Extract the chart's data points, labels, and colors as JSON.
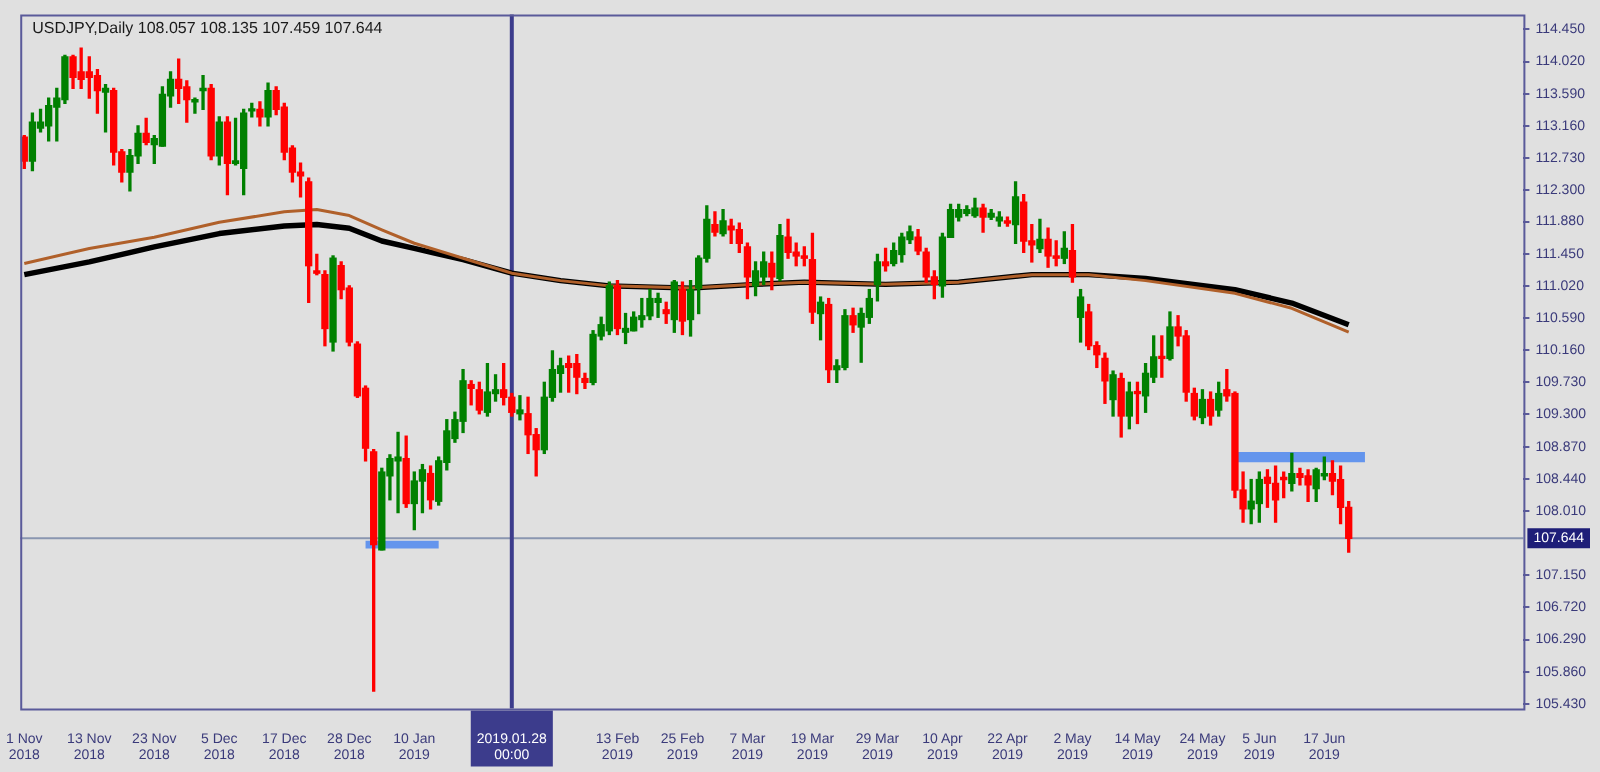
{
  "chart_data": {
    "type": "candlestick",
    "title": "USDJPY,Daily 108.057 108.135 107.459 107.644",
    "categories": [
      "1 Nov 2018",
      null,
      null,
      null,
      null,
      null,
      null,
      null,
      "13 Nov 2018",
      null,
      null,
      null,
      null,
      null,
      null,
      null,
      "23 Nov 2018",
      null,
      null,
      null,
      null,
      null,
      null,
      null,
      "5 Dec 2018",
      null,
      null,
      null,
      null,
      null,
      null,
      null,
      "17 Dec 2018",
      null,
      null,
      null,
      null,
      null,
      null,
      null,
      "28 Dec 2018",
      null,
      null,
      null,
      null,
      null,
      null,
      null,
      "10 Jan 2019",
      null,
      null,
      null,
      null,
      null,
      null,
      null,
      null,
      null,
      null,
      null,
      "2019.01.28 00:00",
      null,
      null,
      null,
      null,
      null,
      null,
      null,
      null,
      null,
      null,
      null,
      null,
      "13 Feb 2019",
      null,
      null,
      null,
      null,
      null,
      null,
      null,
      "25 Feb 2019",
      null,
      null,
      null,
      null,
      null,
      null,
      null,
      "7 Mar 2019",
      null,
      null,
      null,
      null,
      null,
      null,
      null,
      "19 Mar 2019",
      null,
      null,
      null,
      null,
      null,
      null,
      null,
      "29 Mar 2019",
      null,
      null,
      null,
      null,
      null,
      null,
      null,
      "10 Apr 2019",
      null,
      null,
      null,
      null,
      null,
      null,
      null,
      "22 Apr 2019",
      null,
      null,
      null,
      null,
      null,
      null,
      null,
      "2 May 2019",
      null,
      null,
      null,
      null,
      null,
      null,
      null,
      "14 May 2019",
      null,
      null,
      null,
      null,
      null,
      null,
      null,
      "24 May 2019",
      null,
      null,
      null,
      null,
      null,
      null,
      "5 Jun 2019",
      null,
      null,
      null,
      null,
      null,
      null,
      null,
      "17 Jun 2019",
      null,
      null,
      null,
      null,
      null,
      null,
      null,
      null,
      null,
      null,
      null,
      null,
      null,
      null,
      null,
      null,
      null,
      null,
      null,
      null,
      null,
      null,
      null,
      null
    ],
    "ohlc": [
      [
        113.01,
        113.03,
        112.59,
        112.69
      ],
      [
        112.69,
        113.33,
        112.56,
        113.21
      ],
      [
        113.13,
        113.38,
        113.08,
        113.21
      ],
      [
        113.16,
        113.53,
        112.96,
        113.43
      ],
      [
        113.41,
        113.66,
        112.96,
        113.53
      ],
      [
        113.51,
        114.1,
        113.46,
        114.08
      ],
      [
        114.08,
        114.1,
        113.66,
        113.81
      ],
      [
        113.88,
        114.2,
        113.66,
        113.78
      ],
      [
        113.88,
        114.08,
        113.53,
        113.81
      ],
      [
        113.83,
        113.91,
        113.33,
        113.63
      ],
      [
        113.61,
        113.71,
        113.08,
        113.66
      ],
      [
        113.63,
        113.66,
        112.64,
        112.81
      ],
      [
        112.81,
        112.84,
        112.41,
        112.54
      ],
      [
        112.54,
        112.84,
        112.29,
        112.76
      ],
      [
        112.76,
        113.16,
        112.66,
        113.06
      ],
      [
        113.06,
        113.26,
        112.91,
        112.94
      ],
      [
        112.91,
        113.03,
        112.66,
        112.99
      ],
      [
        112.89,
        113.68,
        112.89,
        113.58
      ],
      [
        113.56,
        113.88,
        113.41,
        113.78
      ],
      [
        113.78,
        114.05,
        113.46,
        113.66
      ],
      [
        113.68,
        113.76,
        113.21,
        113.51
      ],
      [
        113.48,
        113.53,
        113.33,
        113.51
      ],
      [
        113.63,
        113.83,
        113.38,
        113.66
      ],
      [
        113.66,
        113.71,
        112.71,
        112.76
      ],
      [
        112.76,
        113.28,
        112.64,
        113.21
      ],
      [
        113.21,
        113.28,
        112.24,
        112.66
      ],
      [
        112.66,
        113.26,
        112.64,
        112.69
      ],
      [
        112.59,
        113.38,
        112.24,
        113.33
      ],
      [
        113.36,
        113.46,
        113.28,
        113.38
      ],
      [
        113.38,
        113.48,
        113.16,
        113.28
      ],
      [
        113.28,
        113.73,
        113.16,
        113.63
      ],
      [
        113.63,
        113.68,
        113.31,
        113.38
      ],
      [
        113.41,
        113.46,
        112.71,
        112.81
      ],
      [
        112.86,
        112.89,
        112.41,
        112.54
      ],
      [
        112.54,
        112.66,
        112.21,
        112.49
      ],
      [
        112.41,
        112.46,
        110.8,
        111.29
      ],
      [
        111.22,
        111.44,
        111.17,
        111.19
      ],
      [
        111.17,
        111.22,
        110.22,
        110.45
      ],
      [
        110.27,
        111.42,
        110.15,
        111.39
      ],
      [
        111.29,
        111.34,
        110.85,
        110.97
      ],
      [
        110.99,
        111.02,
        110.22,
        110.27
      ],
      [
        110.24,
        110.27,
        109.53,
        109.55
      ],
      [
        109.65,
        109.68,
        108.68,
        108.85
      ],
      [
        108.8,
        108.83,
        105.6,
        107.56
      ],
      [
        107.49,
        108.58,
        107.49,
        108.53
      ],
      [
        108.48,
        108.76,
        108.16,
        108.71
      ],
      [
        108.68,
        109.06,
        107.99,
        108.73
      ],
      [
        108.71,
        109.01,
        108.06,
        108.11
      ],
      [
        108.11,
        108.53,
        107.76,
        108.41
      ],
      [
        108.41,
        108.63,
        107.99,
        108.56
      ],
      [
        108.51,
        108.61,
        108.04,
        108.16
      ],
      [
        108.14,
        108.73,
        108.09,
        108.68
      ],
      [
        108.66,
        109.23,
        108.56,
        109.08
      ],
      [
        108.98,
        109.33,
        108.93,
        109.23
      ],
      [
        109.21,
        109.9,
        109.06,
        109.75
      ],
      [
        109.7,
        109.75,
        109.43,
        109.65
      ],
      [
        109.63,
        109.73,
        109.31,
        109.36
      ],
      [
        109.33,
        109.98,
        109.28,
        109.6
      ],
      [
        109.58,
        109.83,
        109.48,
        109.63
      ],
      [
        109.63,
        109.98,
        109.43,
        109.53
      ],
      [
        109.53,
        109.58,
        109.28,
        109.33
      ],
      [
        109.31,
        109.55,
        109.23,
        109.36
      ],
      [
        109.31,
        109.53,
        108.78,
        109.03
      ],
      [
        109.03,
        109.11,
        108.48,
        108.83
      ],
      [
        108.83,
        109.73,
        108.78,
        109.53
      ],
      [
        109.53,
        110.15,
        109.48,
        109.9
      ],
      [
        109.85,
        110.05,
        109.6,
        109.95
      ],
      [
        109.98,
        110.08,
        109.6,
        109.93
      ],
      [
        109.98,
        110.1,
        109.58,
        109.8
      ],
      [
        109.78,
        109.85,
        109.65,
        109.73
      ],
      [
        109.73,
        110.42,
        109.7,
        110.37
      ],
      [
        110.35,
        110.6,
        110.3,
        110.5
      ],
      [
        110.42,
        111.07,
        110.37,
        111.02
      ],
      [
        111.02,
        111.09,
        110.37,
        110.45
      ],
      [
        110.4,
        110.65,
        110.25,
        110.45
      ],
      [
        110.42,
        110.67,
        110.42,
        110.6
      ],
      [
        110.57,
        110.85,
        110.47,
        110.62
      ],
      [
        110.62,
        110.97,
        110.57,
        110.85
      ],
      [
        110.8,
        110.92,
        110.6,
        110.85
      ],
      [
        110.7,
        110.8,
        110.52,
        110.65
      ],
      [
        110.57,
        111.09,
        110.4,
        111.07
      ],
      [
        110.97,
        111.07,
        110.37,
        110.55
      ],
      [
        110.57,
        111.09,
        110.35,
        110.97
      ],
      [
        110.99,
        111.42,
        110.65,
        111.39
      ],
      [
        111.39,
        112.09,
        111.34,
        111.91
      ],
      [
        111.84,
        112.01,
        111.69,
        111.74
      ],
      [
        111.72,
        112.04,
        111.69,
        111.89
      ],
      [
        111.82,
        111.91,
        111.59,
        111.77
      ],
      [
        111.77,
        111.86,
        111.47,
        111.59
      ],
      [
        111.54,
        111.59,
        110.85,
        111.14
      ],
      [
        111.02,
        111.34,
        110.89,
        111.22
      ],
      [
        111.14,
        111.47,
        111.04,
        111.34
      ],
      [
        111.32,
        111.47,
        110.97,
        111.14
      ],
      [
        111.12,
        111.84,
        111.09,
        111.69
      ],
      [
        111.67,
        111.91,
        111.39,
        111.47
      ],
      [
        111.47,
        111.59,
        111.29,
        111.42
      ],
      [
        111.42,
        111.54,
        111.29,
        111.39
      ],
      [
        111.37,
        111.72,
        110.52,
        110.67
      ],
      [
        110.65,
        110.87,
        110.3,
        110.8
      ],
      [
        110.77,
        110.85,
        109.73,
        109.9
      ],
      [
        109.9,
        110.03,
        109.73,
        109.95
      ],
      [
        109.93,
        110.7,
        109.9,
        110.62
      ],
      [
        110.62,
        110.72,
        110.4,
        110.5
      ],
      [
        110.47,
        110.72,
        110.0,
        110.65
      ],
      [
        110.6,
        110.97,
        110.52,
        110.85
      ],
      [
        111.04,
        111.44,
        110.82,
        111.34
      ],
      [
        111.34,
        111.52,
        111.22,
        111.29
      ],
      [
        111.32,
        111.59,
        111.29,
        111.49
      ],
      [
        111.44,
        111.72,
        111.34,
        111.67
      ],
      [
        111.64,
        111.82,
        111.59,
        111.74
      ],
      [
        111.67,
        111.77,
        111.44,
        111.49
      ],
      [
        111.47,
        111.52,
        111.07,
        111.14
      ],
      [
        111.14,
        111.22,
        110.85,
        111.04
      ],
      [
        111.02,
        111.72,
        110.87,
        111.67
      ],
      [
        111.67,
        112.11,
        111.67,
        112.04
      ],
      [
        111.94,
        112.11,
        111.89,
        112.04
      ],
      [
        111.99,
        112.09,
        111.96,
        112.04
      ],
      [
        111.96,
        112.19,
        111.94,
        112.06
      ],
      [
        112.06,
        112.11,
        111.74,
        111.94
      ],
      [
        111.94,
        112.04,
        111.91,
        111.99
      ],
      [
        111.89,
        112.01,
        111.82,
        111.94
      ],
      [
        111.89,
        111.94,
        111.82,
        111.86
      ],
      [
        111.84,
        112.41,
        111.59,
        112.21
      ],
      [
        112.14,
        112.24,
        111.47,
        111.62
      ],
      [
        111.62,
        111.84,
        111.34,
        111.57
      ],
      [
        111.52,
        111.91,
        111.47,
        111.64
      ],
      [
        111.64,
        111.79,
        111.27,
        111.42
      ],
      [
        111.42,
        111.62,
        111.29,
        111.39
      ],
      [
        111.39,
        111.74,
        111.32,
        111.52
      ],
      [
        111.49,
        111.84,
        111.07,
        111.14
      ],
      [
        110.6,
        110.97,
        110.27,
        110.87
      ],
      [
        110.67,
        110.77,
        110.17,
        110.22
      ],
      [
        110.22,
        110.27,
        109.93,
        110.1
      ],
      [
        110.05,
        110.12,
        109.45,
        109.75
      ],
      [
        109.5,
        109.88,
        109.28,
        109.83
      ],
      [
        109.78,
        109.85,
        109.0,
        109.28
      ],
      [
        109.28,
        109.73,
        109.11,
        109.6
      ],
      [
        109.6,
        109.73,
        109.18,
        109.58
      ],
      [
        109.55,
        109.98,
        109.33,
        109.85
      ],
      [
        109.8,
        110.35,
        109.73,
        110.07
      ],
      [
        110.07,
        110.35,
        109.8,
        110.05
      ],
      [
        110.05,
        110.67,
        110.03,
        110.47
      ],
      [
        110.47,
        110.62,
        110.22,
        110.35
      ],
      [
        110.35,
        110.42,
        109.48,
        109.6
      ],
      [
        109.58,
        109.65,
        109.23,
        109.28
      ],
      [
        109.26,
        109.63,
        109.18,
        109.5
      ],
      [
        109.5,
        109.6,
        109.16,
        109.28
      ],
      [
        109.36,
        109.73,
        109.28,
        109.58
      ],
      [
        109.63,
        109.9,
        109.48,
        109.55
      ],
      [
        109.58,
        109.6,
        108.19,
        108.29
      ],
      [
        108.29,
        108.53,
        107.86,
        108.04
      ],
      [
        108.04,
        108.43,
        107.84,
        108.14
      ],
      [
        108.11,
        108.53,
        107.86,
        108.43
      ],
      [
        108.46,
        108.56,
        108.06,
        108.38
      ],
      [
        108.38,
        108.61,
        107.86,
        108.16
      ],
      [
        108.46,
        108.53,
        108.19,
        108.43
      ],
      [
        108.38,
        108.78,
        108.28,
        108.51
      ],
      [
        108.51,
        108.58,
        108.36,
        108.46
      ],
      [
        108.48,
        108.56,
        108.14,
        108.36
      ],
      [
        108.31,
        108.58,
        108.14,
        108.56
      ],
      [
        108.48,
        108.73,
        108.43,
        108.51
      ],
      [
        108.51,
        108.68,
        108.23,
        108.41
      ],
      [
        108.43,
        108.61,
        107.84,
        108.06
      ],
      [
        108.057,
        108.135,
        107.459,
        107.644
      ],
      null,
      null,
      null,
      null,
      null,
      null,
      null,
      null,
      null,
      null,
      null,
      null,
      null,
      null,
      null,
      null,
      null,
      null,
      null,
      null,
      null
    ],
    "series": [
      {
        "type": "line",
        "color": "#b0602a",
        "values": [
          111.32,
          null,
          null,
          null,
          null,
          null,
          null,
          null,
          111.52,
          null,
          null,
          null,
          null,
          null,
          null,
          null,
          111.67,
          null,
          null,
          null,
          null,
          null,
          null,
          null,
          111.87,
          null,
          null,
          null,
          null,
          null,
          null,
          null,
          112.01,
          null,
          null,
          null,
          112.04,
          null,
          null,
          null,
          111.96,
          null,
          null,
          null,
          111.77,
          null,
          null,
          null,
          111.59,
          null,
          null,
          null,
          null,
          null,
          111.39,
          null,
          null,
          null,
          null,
          null,
          111.19,
          null,
          null,
          null,
          null,
          null,
          111.09,
          null,
          null,
          null,
          null,
          null,
          111.02,
          null,
          null,
          null,
          null,
          null,
          null,
          null,
          null,
          null,
          110.99,
          null,
          null,
          null,
          null,
          null,
          null,
          null,
          111.04,
          null,
          null,
          null,
          null,
          null,
          111.07,
          null,
          null,
          null,
          null,
          null,
          null,
          null,
          null,
          null,
          111.04,
          null,
          null,
          null,
          null,
          null,
          null,
          null,
          null,
          111.07,
          null,
          null,
          null,
          null,
          null,
          null,
          null,
          null,
          111.17,
          null,
          null,
          null,
          null,
          null,
          null,
          111.17,
          null,
          null,
          null,
          null,
          null,
          null,
          111.09,
          null,
          null,
          null,
          null,
          null,
          null,
          null,
          null,
          null,
          null,
          110.92,
          null,
          null,
          null,
          null,
          null,
          null,
          110.72,
          null,
          null,
          null,
          null,
          null,
          null,
          110.4,
          null,
          null,
          null,
          null,
          null,
          null,
          null,
          null,
          null,
          null,
          null,
          null,
          null,
          null,
          null,
          null,
          null,
          null,
          null,
          null,
          null
        ]
      },
      {
        "type": "line",
        "color": "#000000",
        "values": [
          111.17,
          null,
          null,
          null,
          null,
          null,
          null,
          null,
          111.34,
          null,
          null,
          null,
          null,
          null,
          null,
          null,
          111.54,
          null,
          null,
          null,
          null,
          null,
          null,
          null,
          111.72,
          null,
          null,
          null,
          null,
          null,
          null,
          null,
          111.82,
          null,
          null,
          null,
          111.84,
          null,
          null,
          null,
          111.79,
          null,
          null,
          null,
          111.62,
          null,
          null,
          null,
          111.52,
          null,
          null,
          null,
          null,
          null,
          111.37,
          null,
          null,
          null,
          null,
          null,
          111.19,
          null,
          null,
          null,
          null,
          null,
          111.09,
          null,
          null,
          null,
          null,
          null,
          111.02,
          null,
          null,
          null,
          null,
          null,
          null,
          null,
          null,
          null,
          110.99,
          null,
          null,
          null,
          null,
          null,
          null,
          null,
          111.04,
          null,
          null,
          null,
          null,
          null,
          111.07,
          null,
          null,
          null,
          null,
          null,
          null,
          null,
          null,
          null,
          111.04,
          null,
          null,
          null,
          null,
          null,
          null,
          null,
          null,
          111.07,
          null,
          null,
          null,
          null,
          null,
          null,
          null,
          null,
          111.17,
          null,
          null,
          null,
          null,
          null,
          null,
          111.17,
          null,
          null,
          null,
          null,
          null,
          null,
          111.12,
          null,
          null,
          null,
          null,
          null,
          null,
          null,
          null,
          null,
          null,
          110.97,
          null,
          null,
          null,
          null,
          null,
          null,
          110.79,
          null,
          null,
          null,
          null,
          null,
          null,
          110.5,
          null,
          null,
          null,
          null,
          null,
          null,
          null,
          null,
          null,
          null,
          null,
          null,
          null,
          null,
          null,
          null,
          null,
          null,
          null,
          null,
          null
        ]
      },
      {
        "type": "line",
        "color": "#6495ed",
        "values": [
          null,
          null,
          null,
          null,
          null,
          null,
          null,
          null,
          null,
          null,
          null,
          null,
          null,
          null,
          null,
          null,
          null,
          null,
          null,
          null,
          null,
          null,
          null,
          null,
          null,
          null,
          null,
          null,
          null,
          null,
          null,
          null,
          null,
          null,
          null,
          null,
          null,
          null,
          null,
          null,
          null,
          null,
          107.56,
          107.56,
          107.56,
          107.56,
          107.56,
          107.56,
          107.56,
          107.56,
          107.56,
          107.56,
          null,
          null,
          null,
          null,
          null,
          null,
          null,
          null,
          null,
          null,
          null,
          null,
          null,
          null,
          null,
          null,
          null,
          null,
          null,
          null,
          null,
          null,
          null,
          null,
          null,
          null,
          null,
          null,
          null,
          null,
          null,
          null,
          null,
          null,
          null,
          null,
          null,
          null,
          null,
          null,
          null,
          null,
          null,
          null,
          null,
          null,
          null,
          null,
          null,
          null,
          null,
          null,
          null,
          null,
          null,
          null,
          null,
          null,
          null,
          null,
          null,
          null,
          null,
          null,
          null,
          null,
          null,
          null,
          null,
          null,
          null,
          null,
          null,
          null,
          null,
          null,
          null,
          null,
          null,
          null,
          null,
          null,
          null,
          null,
          null,
          null,
          null,
          null,
          null,
          null,
          null,
          null,
          null,
          null,
          null,
          null,
          null,
          null,
          null,
          null,
          null,
          null,
          null,
          null,
          null,
          null,
          null,
          null,
          null,
          null,
          null,
          null,
          null,
          null,
          null,
          null,
          null,
          null,
          null,
          null,
          null,
          null,
          null,
          null,
          null,
          null,
          null,
          null,
          null,
          null,
          null,
          null,
          null
        ]
      },
      {
        "type": "line",
        "color": "#6495ed",
        "values": [
          null,
          null,
          null,
          null,
          null,
          null,
          null,
          null,
          null,
          null,
          null,
          null,
          null,
          null,
          null,
          null,
          null,
          null,
          null,
          null,
          null,
          null,
          null,
          null,
          null,
          null,
          null,
          null,
          null,
          null,
          null,
          null,
          null,
          null,
          null,
          null,
          null,
          null,
          null,
          null,
          null,
          null,
          null,
          null,
          null,
          null,
          null,
          null,
          null,
          null,
          null,
          null,
          null,
          null,
          null,
          null,
          null,
          null,
          null,
          null,
          null,
          null,
          null,
          null,
          null,
          null,
          null,
          null,
          null,
          null,
          null,
          null,
          null,
          null,
          null,
          null,
          null,
          null,
          null,
          null,
          null,
          null,
          null,
          null,
          null,
          null,
          null,
          null,
          null,
          null,
          null,
          null,
          null,
          null,
          null,
          null,
          null,
          null,
          null,
          null,
          null,
          null,
          null,
          null,
          null,
          null,
          null,
          null,
          null,
          null,
          null,
          null,
          null,
          null,
          null,
          null,
          null,
          null,
          null,
          null,
          null,
          null,
          null,
          null,
          null,
          null,
          null,
          null,
          null,
          null,
          null,
          null,
          null,
          null,
          null,
          null,
          null,
          null,
          null,
          null,
          null,
          null,
          null,
          null,
          null,
          null,
          null,
          null,
          null,
          108.73,
          108.73,
          108.73,
          108.73,
          108.73,
          108.73,
          108.73,
          108.73,
          108.73,
          108.73,
          108.73,
          108.73,
          108.73,
          108.73,
          108.73,
          108.73,
          108.73,
          null,
          null,
          null,
          null,
          null,
          null,
          null,
          null,
          null,
          null,
          null,
          null,
          null,
          null,
          null,
          null,
          null,
          null,
          null
        ]
      }
    ],
    "ylim": [
      105.37,
      114.65
    ],
    "yticks": [
      {
        "value": 105.43,
        "label": "105.430"
      },
      {
        "value": 105.86,
        "label": "105.860"
      },
      {
        "value": 106.29,
        "label": "106.290"
      },
      {
        "value": 106.72,
        "label": "106.720"
      },
      {
        "value": 107.15,
        "label": "107.150"
      },
      {
        "value": 108.01,
        "label": "108.010"
      },
      {
        "value": 108.44,
        "label": "108.440"
      },
      {
        "value": 108.87,
        "label": "108.870"
      },
      {
        "value": 109.3,
        "label": "109.300"
      },
      {
        "value": 109.73,
        "label": "109.730"
      },
      {
        "value": 110.16,
        "label": "110.160"
      },
      {
        "value": 110.59,
        "label": "110.590"
      },
      {
        "value": 111.02,
        "label": "111.020"
      },
      {
        "value": 111.45,
        "label": "111.450"
      },
      {
        "value": 111.88,
        "label": "111.880"
      },
      {
        "value": 112.3,
        "label": "112.300"
      },
      {
        "value": 112.73,
        "label": "112.730"
      },
      {
        "value": 113.16,
        "label": "113.160"
      },
      {
        "value": 113.59,
        "label": "113.590"
      },
      {
        "value": 114.02,
        "label": "114.020"
      },
      {
        "value": 114.45,
        "label": "114.450"
      }
    ],
    "ref_lines": [
      {
        "axis": "y",
        "value": 107.644,
        "label": "107.644",
        "color": "#8a96b0"
      },
      {
        "axis": "x",
        "value": "2019.01.28 00:00",
        "color": "#3c3c8c"
      }
    ],
    "grid": false,
    "legend": false
  }
}
